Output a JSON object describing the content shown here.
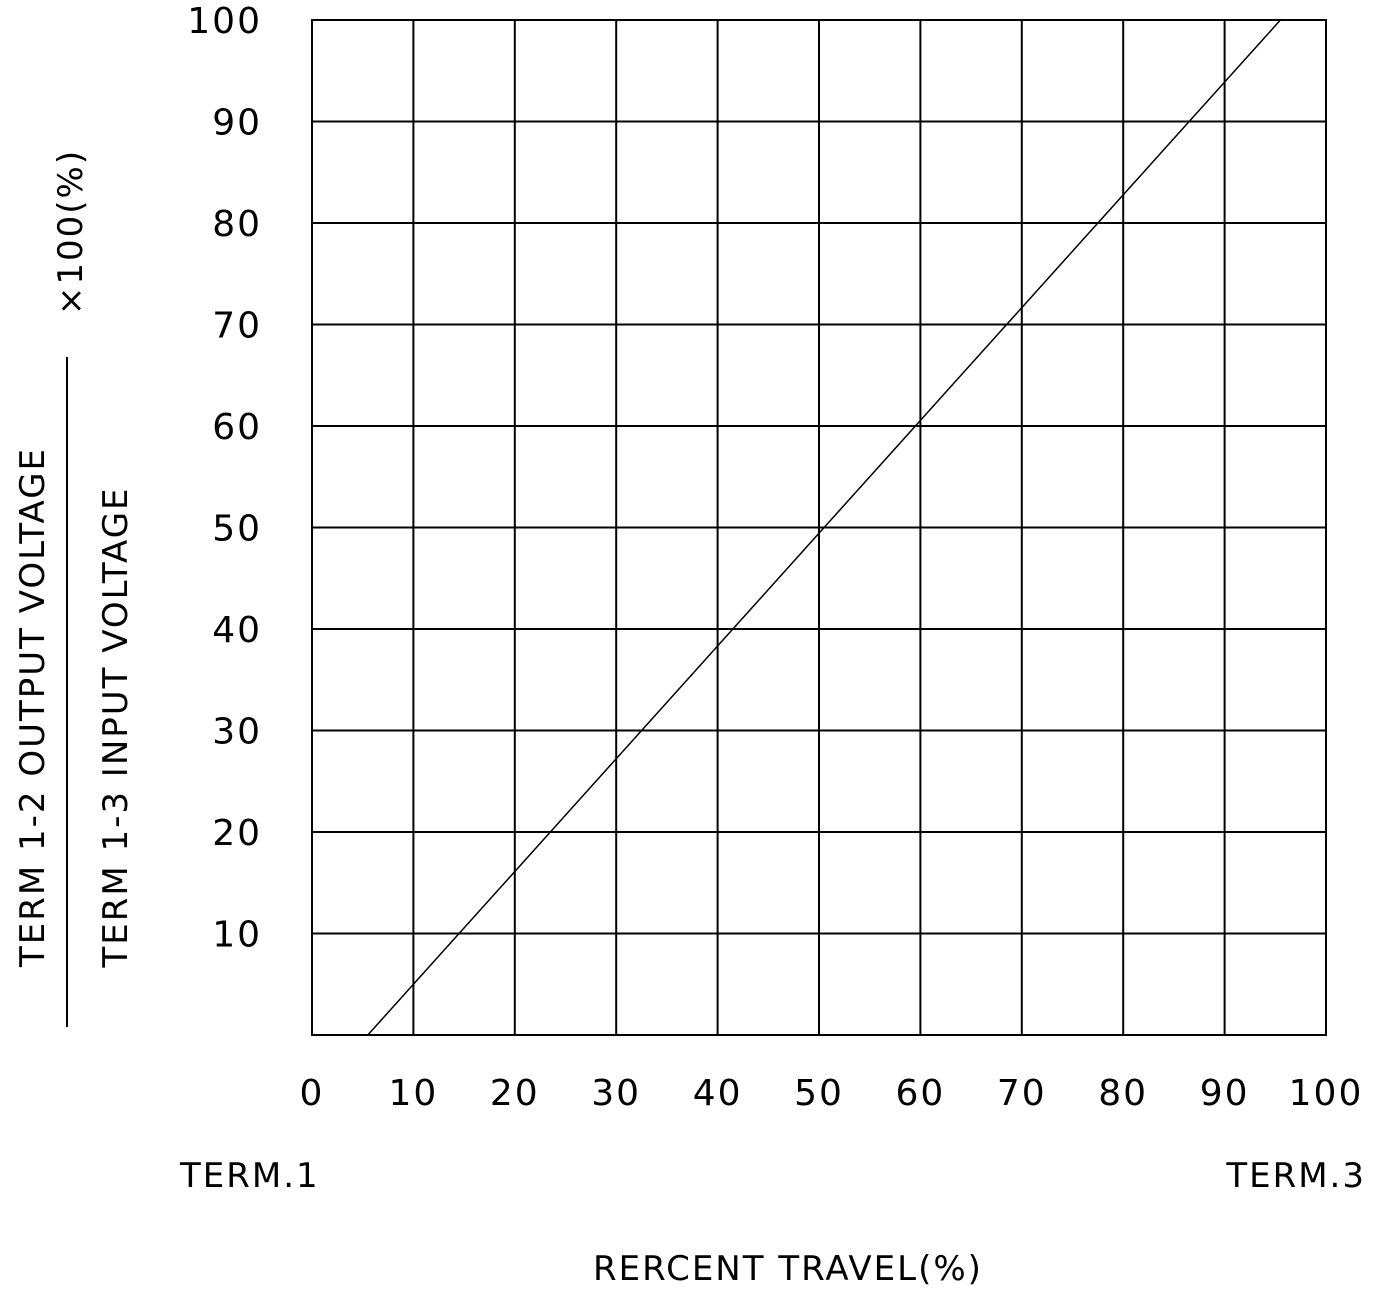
{
  "chart_data": {
    "type": "line",
    "xlabel": "RERCENT TRAVEL(%)",
    "ylabel": {
      "numerator": "TERM 1-2 OUTPUT VOLTAGE",
      "denominator": "TERM 1-3 INPUT VOLTAGE",
      "multiplier": "×100(%)"
    },
    "x_end_labels": {
      "left": "TERM.1",
      "right": "TERM.3"
    },
    "xlim": [
      0,
      100
    ],
    "ylim": [
      0,
      100
    ],
    "x_ticks": [
      "0",
      "10",
      "20",
      "30",
      "40",
      "50",
      "60",
      "70",
      "80",
      "90",
      "100"
    ],
    "y_ticks": [
      "10",
      "20",
      "30",
      "40",
      "50",
      "60",
      "70",
      "80",
      "90",
      "100"
    ],
    "grid": true,
    "series": [
      {
        "x": [
          5.5,
          95.5
        ],
        "y": [
          0,
          100
        ]
      }
    ]
  }
}
